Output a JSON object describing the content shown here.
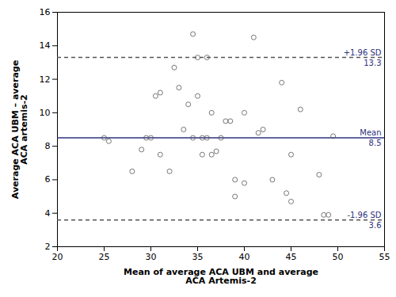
{
  "chart_data": {
    "type": "scatter",
    "x": [
      25,
      25.5,
      28,
      29,
      29.5,
      30,
      30.5,
      31,
      31,
      32,
      32.5,
      33,
      33.5,
      34,
      34.5,
      34.5,
      35,
      35,
      35.5,
      35.5,
      36,
      36,
      36.5,
      36.5,
      37,
      37.5,
      38,
      38.5,
      39,
      39,
      40,
      40,
      41,
      41.5,
      42,
      43,
      44,
      44.5,
      45,
      45,
      46,
      48,
      48.5,
      49,
      49.5
    ],
    "values": [
      8.5,
      8.3,
      6.5,
      7.8,
      8.5,
      8.5,
      11.0,
      11.2,
      7.5,
      6.5,
      12.7,
      11.5,
      9.0,
      10.5,
      14.7,
      8.5,
      13.3,
      11.0,
      8.5,
      7.5,
      13.3,
      8.5,
      10.0,
      7.5,
      7.7,
      8.5,
      9.5,
      9.5,
      6.0,
      5.0,
      10.0,
      5.8,
      14.5,
      8.8,
      9.0,
      6.0,
      11.8,
      5.2,
      7.5,
      4.7,
      10.2,
      6.3,
      3.9,
      3.9,
      8.6
    ],
    "color": "#555555",
    "marker": "circle_open",
    "xlabel": "Mean of average ACA UBM and average\nACA Artemis-2",
    "ylabel": "Average ACA UBM – average\nACA artemis-2",
    "xlim": [
      20,
      55
    ],
    "ylim": [
      2,
      16
    ],
    "xticks": [
      20,
      25,
      30,
      35,
      40,
      45,
      50,
      55
    ],
    "yticks": [
      2,
      4,
      6,
      8,
      10,
      12,
      14,
      16
    ],
    "grid": false,
    "hlines": [
      {
        "value": 13.3,
        "label": "+1.96 SD",
        "value_label": "13.3",
        "color": "#555555",
        "line_style": "dashed",
        "text_color": "#2d3080"
      },
      {
        "value": 8.5,
        "label": "Mean",
        "value_label": "8.5",
        "color": "#2d3080",
        "line_style": "solid",
        "text_color": "#2d3080"
      },
      {
        "value": 3.6,
        "label": "-1.96 SD",
        "value_label": "3.6",
        "color": "#555555",
        "line_style": "dashed",
        "text_color": "#2d3080"
      }
    ]
  }
}
